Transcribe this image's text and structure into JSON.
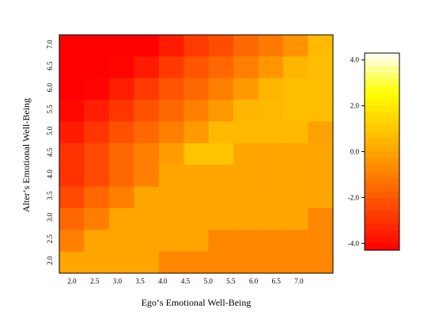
{
  "chart_data": [
    {
      "type": "heatmap",
      "title": "",
      "xlabel": "Ego‘s Emotional Well-Being",
      "ylabel": "Alter‘s Emotional Well-Being",
      "x_tick_labels": [
        "2.0",
        "2.5",
        "3.0",
        "3.5",
        "4.0",
        "4.5",
        "5.0",
        "5.5",
        "6.0",
        "6.5",
        "7.0"
      ],
      "y_tick_labels": [
        "2.0",
        "2.5",
        "3.0",
        "3.5",
        "4.0",
        "4.5",
        "5.0",
        "5.5",
        "6.0",
        "6.5",
        "7.0"
      ],
      "x": [
        2.0,
        2.5,
        3.0,
        3.5,
        4.0,
        4.5,
        5.0,
        5.5,
        6.0,
        6.5,
        7.0
      ],
      "y": [
        2.0,
        2.5,
        3.0,
        3.5,
        4.0,
        4.5,
        5.0,
        5.5,
        6.0,
        6.5,
        7.0
      ],
      "z_rows_top_to_bottom_y_7_to_2": [
        [
          -4.3,
          -4.3,
          -4.3,
          -4.3,
          -3.6,
          -2.8,
          -2.3,
          -1.6,
          -1.1,
          -0.5,
          0.6
        ],
        [
          -4.3,
          -4.3,
          -4.2,
          -3.6,
          -2.8,
          -2.1,
          -1.6,
          -1.0,
          -0.4,
          0.5,
          0.7
        ],
        [
          -4.3,
          -4.2,
          -3.5,
          -2.8,
          -2.1,
          -1.6,
          -1.0,
          -0.3,
          0.5,
          0.7,
          0.7
        ],
        [
          -4.1,
          -3.5,
          -2.9,
          -2.2,
          -1.6,
          -1.0,
          -0.3,
          0.5,
          0.6,
          0.7,
          0.7
        ],
        [
          -3.6,
          -2.9,
          -2.2,
          -1.6,
          -1.0,
          -0.3,
          0.6,
          0.6,
          0.6,
          0.6,
          -0.1
        ],
        [
          -3.0,
          -2.4,
          -1.6,
          -1.0,
          -0.2,
          0.9,
          0.9,
          0.0,
          0.0,
          0.0,
          0.0
        ],
        [
          -3.0,
          -2.4,
          -1.6,
          -1.0,
          0.0,
          0.0,
          0.0,
          0.0,
          0.0,
          0.0,
          0.0
        ],
        [
          -2.4,
          -1.6,
          -1.0,
          0.0,
          0.0,
          0.0,
          0.0,
          0.0,
          0.0,
          0.0,
          0.0
        ],
        [
          -1.6,
          -1.0,
          0.0,
          0.0,
          0.0,
          0.0,
          0.0,
          0.0,
          0.0,
          0.0,
          -0.8
        ],
        [
          -1.0,
          0.0,
          0.0,
          0.0,
          0.0,
          0.0,
          -0.8,
          -0.8,
          -0.8,
          -0.8,
          -0.8
        ],
        [
          0.0,
          0.0,
          0.0,
          0.0,
          -0.8,
          -0.8,
          -0.8,
          -0.8,
          -0.8,
          -0.8,
          -0.8
        ]
      ],
      "color_scale": {
        "type": "heat",
        "low_color": "#ff0000",
        "mid_color": "#ffa500",
        "high_color": "#ffffff",
        "range": [
          -4.3,
          4.3
        ],
        "tick_labels": [
          "4.0",
          "2.0",
          "0.0",
          "-2.0",
          "-4.0"
        ],
        "ticks": [
          4.0,
          2.0,
          0.0,
          -2.0,
          -4.0
        ]
      },
      "grid": false,
      "legend": "right"
    }
  ]
}
